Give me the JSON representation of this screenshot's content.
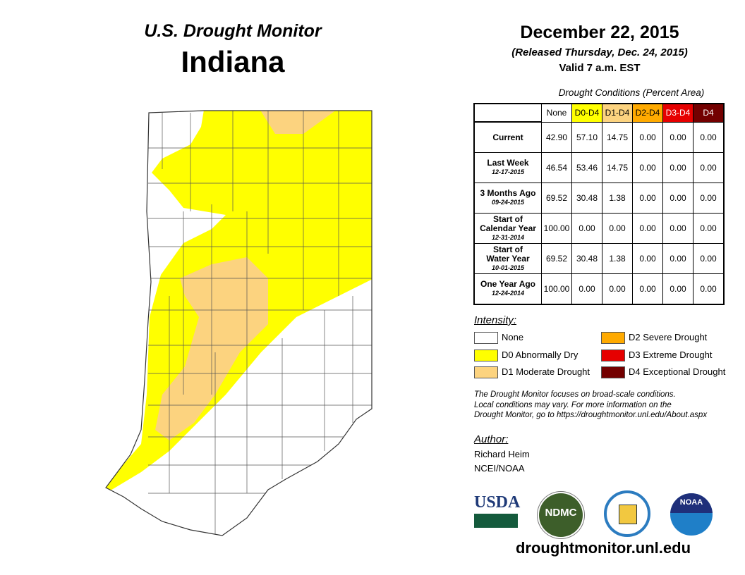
{
  "header": {
    "title": "U.S. Drought Monitor",
    "state": "Indiana",
    "date": "December 22, 2015",
    "released": "(Released Thursday, Dec. 24, 2015)",
    "valid": "Valid 7 a.m. EST"
  },
  "table": {
    "caption": "Drought Conditions (Percent Area)",
    "columns": [
      {
        "label": "None",
        "bg": "#ffffff",
        "fg": "#000000"
      },
      {
        "label": "D0-D4",
        "bg": "#ffff00",
        "fg": "#000000"
      },
      {
        "label": "D1-D4",
        "bg": "#fcd37f",
        "fg": "#000000"
      },
      {
        "label": "D2-D4",
        "bg": "#ffaa00",
        "fg": "#000000"
      },
      {
        "label": "D3-D4",
        "bg": "#e60000",
        "fg": "#ffffff"
      },
      {
        "label": "D4",
        "bg": "#730000",
        "fg": "#ffffff"
      }
    ],
    "rows": [
      {
        "label": "Current",
        "label2": "",
        "date": "",
        "values": [
          "42.90",
          "57.10",
          "14.75",
          "0.00",
          "0.00",
          "0.00"
        ]
      },
      {
        "label": "Last Week",
        "label2": "",
        "date": "12-17-2015",
        "values": [
          "46.54",
          "53.46",
          "14.75",
          "0.00",
          "0.00",
          "0.00"
        ]
      },
      {
        "label": "3 Months Ago",
        "label2": "",
        "date": "09-24-2015",
        "values": [
          "69.52",
          "30.48",
          "1.38",
          "0.00",
          "0.00",
          "0.00"
        ]
      },
      {
        "label": "Start of",
        "label2": "Calendar Year",
        "date": "12-31-2014",
        "values": [
          "100.00",
          "0.00",
          "0.00",
          "0.00",
          "0.00",
          "0.00"
        ]
      },
      {
        "label": "Start of",
        "label2": "Water Year",
        "date": "10-01-2015",
        "values": [
          "69.52",
          "30.48",
          "1.38",
          "0.00",
          "0.00",
          "0.00"
        ]
      },
      {
        "label": "One Year Ago",
        "label2": "",
        "date": "12-24-2014",
        "values": [
          "100.00",
          "0.00",
          "0.00",
          "0.00",
          "0.00",
          "0.00"
        ]
      }
    ]
  },
  "legend": {
    "title": "Intensity:",
    "items": [
      {
        "label": "None",
        "color": "#ffffff"
      },
      {
        "label": "D0 Abnormally Dry",
        "color": "#ffff00"
      },
      {
        "label": "D1 Moderate Drought",
        "color": "#fcd37f"
      },
      {
        "label": "D2 Severe Drought",
        "color": "#ffaa00"
      },
      {
        "label": "D3 Extreme Drought",
        "color": "#e60000"
      },
      {
        "label": "D4 Exceptional Drought",
        "color": "#730000"
      }
    ]
  },
  "note": [
    "The Drought Monitor focuses on broad-scale conditions.",
    "Local conditions may vary. For more information on the",
    "Drought Monitor, go to https://droughtmonitor.unl.edu/About.aspx"
  ],
  "author": {
    "label": "Author:",
    "name": "Richard Heim",
    "org": "NCEI/NOAA"
  },
  "logos": {
    "usda": "USDA",
    "ndmc": "NDMC",
    "noaa": "NOAA"
  },
  "footer": {
    "url": "droughtmonitor.unl.edu"
  }
}
